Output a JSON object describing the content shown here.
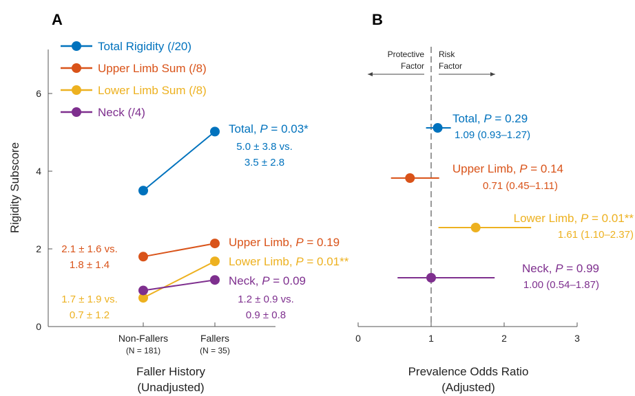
{
  "colors": {
    "total": "#0072BD",
    "upper": "#D95319",
    "lower": "#EDB120",
    "neck": "#7E2F8E",
    "axis": "#555555"
  },
  "panel_labels": {
    "a": "A",
    "b": "B"
  },
  "region_labels": {
    "protective": [
      "Protective",
      "Factor"
    ],
    "risk": [
      "Risk",
      "Factor"
    ]
  },
  "chart_data": [
    {
      "type": "line",
      "panel": "A",
      "ylabel": "Rigidity Subscore",
      "xlabel": [
        "Faller History",
        "(Unadjusted)"
      ],
      "categories": [
        {
          "label": "Non-Fallers",
          "sub": "(N = 181)"
        },
        {
          "label": "Fallers",
          "sub": "(N = 35)"
        }
      ],
      "ylim": [
        0,
        7
      ],
      "yticks": [
        0,
        2,
        4,
        6
      ],
      "legend": {
        "position": "top-left",
        "entries": [
          "Total Rigidity (/20)",
          "Upper Limb Sum (/8)",
          "Lower Limb Sum (/8)",
          "Neck (/4)"
        ]
      },
      "series": [
        {
          "key": "total",
          "values": [
            3.5,
            5.02
          ],
          "label_main": "Total, ",
          "label_p": "P",
          "label_val": " = 0.03*",
          "stats_right": [
            "5.0 ± 3.8 vs.",
            "3.5 ± 2.8"
          ]
        },
        {
          "key": "upper",
          "values": [
            1.8,
            2.14
          ],
          "label_main": "Upper Limb, ",
          "label_p": "P",
          "label_val": " = 0.19",
          "stats_left": [
            "2.1 ± 1.6 vs.",
            "1.8 ± 1.4"
          ]
        },
        {
          "key": "lower",
          "values": [
            0.74,
            1.68
          ],
          "label_main": "Lower Limb, ",
          "label_p": "P",
          "label_val": " = 0.01**",
          "stats_left": [
            "1.7 ± 1.9 vs.",
            "0.7 ± 1.2"
          ]
        },
        {
          "key": "neck",
          "values": [
            0.93,
            1.2
          ],
          "label_main": "Neck, ",
          "label_p": "P",
          "label_val": " = 0.09",
          "stats_right": [
            "1.2 ± 0.9 vs.",
            "0.9 ± 0.8"
          ]
        }
      ]
    },
    {
      "type": "scatter",
      "panel": "B",
      "xlabel": [
        "Prevalence Odds Ratio",
        "(Adjusted)"
      ],
      "xlim": [
        0,
        3
      ],
      "xticks": [
        0,
        1,
        2,
        3
      ],
      "reference_x": 1,
      "series": [
        {
          "key": "total",
          "or": 1.09,
          "ci": [
            0.93,
            1.27
          ],
          "label_main": "Total, ",
          "label_p": "P",
          "label_val": " = 0.29",
          "label_ci": "1.09 (0.93–1.27)"
        },
        {
          "key": "upper",
          "or": 0.71,
          "ci": [
            0.45,
            1.11
          ],
          "label_main": "Upper Limb, ",
          "label_p": "P",
          "label_val": " = 0.14",
          "label_ci": "0.71 (0.45–1.11)"
        },
        {
          "key": "lower",
          "or": 1.61,
          "ci": [
            1.1,
            2.37
          ],
          "label_main": "Lower Limb, ",
          "label_p": "P",
          "label_val": " = 0.01**",
          "label_ci": "1.61 (1.10–2.37)"
        },
        {
          "key": "neck",
          "or": 1.0,
          "ci": [
            0.54,
            1.87
          ],
          "label_main": "Neck, ",
          "label_p": "P",
          "label_val": " = 0.99",
          "label_ci": "1.00 (0.54–1.87)"
        }
      ]
    }
  ]
}
